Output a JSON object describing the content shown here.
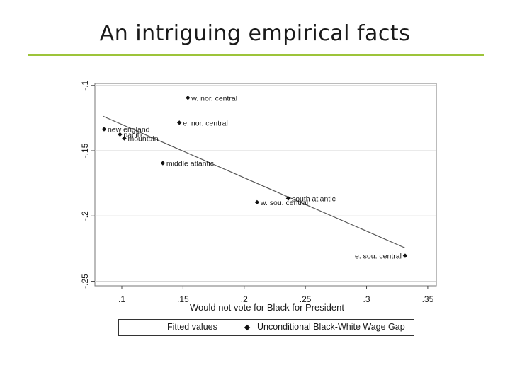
{
  "slide": {
    "title": "An intriguing empirical facts",
    "accent_color": "#9dc43a"
  },
  "chart_data": {
    "type": "scatter",
    "title": "",
    "xlabel": "Would not vote for Black for President",
    "ylabel": "",
    "xlim": [
      0.078,
      0.357
    ],
    "ylim": [
      -0.2535,
      -0.0985
    ],
    "x_ticks": [
      0.1,
      0.15,
      0.2,
      0.25,
      0.3,
      0.35
    ],
    "x_tick_labels": [
      ".1",
      ".15",
      ".2",
      ".25",
      ".3",
      ".35"
    ],
    "y_ticks": [
      -0.25,
      -0.2,
      -0.15,
      -0.1
    ],
    "y_tick_labels": [
      "-.25",
      "-.2",
      "-.15",
      "-.1"
    ],
    "grid": "horizontal",
    "legend_position": "bottom",
    "series": [
      {
        "name": "Unconditional Black-White Wage Gap",
        "kind": "scatter",
        "marker": "diamond",
        "color": "#111111",
        "points": [
          {
            "label": "w. nor. central",
            "x": 0.154,
            "y": -0.1095
          },
          {
            "label": "e. nor. central",
            "x": 0.147,
            "y": -0.1285
          },
          {
            "label": "new england",
            "x": 0.0855,
            "y": -0.1335
          },
          {
            "label": "pacific",
            "x": 0.0985,
            "y": -0.1375
          },
          {
            "label": "mountain",
            "x": 0.102,
            "y": -0.1405
          },
          {
            "label": "middle atlantic",
            "x": 0.1335,
            "y": -0.1595
          },
          {
            "label": "south atlantic",
            "x": 0.236,
            "y": -0.1865
          },
          {
            "label": "w. sou. central",
            "x": 0.2105,
            "y": -0.1895
          },
          {
            "label": "e. sou. central",
            "x": 0.3315,
            "y": -0.2305
          }
        ]
      },
      {
        "name": "Fitted values",
        "kind": "line",
        "color": "#555555",
        "x": [
          0.0845,
          0.3315
        ],
        "y": [
          -0.1235,
          -0.2245
        ]
      }
    ]
  }
}
